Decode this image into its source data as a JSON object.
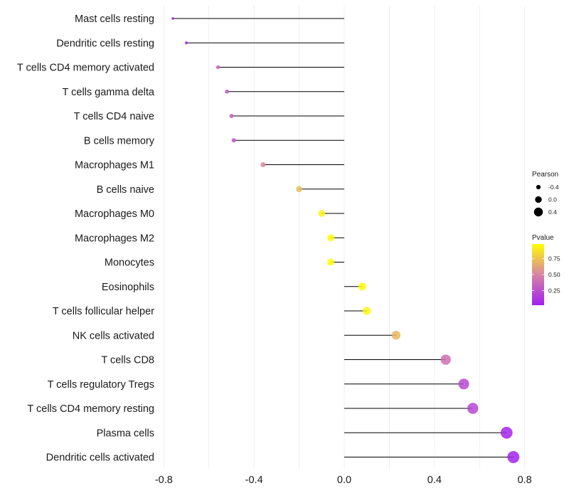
{
  "chart_data": {
    "type": "lollipop",
    "title": "",
    "xlabel": "",
    "ylabel": "",
    "xlim": [
      -0.82,
      0.82
    ],
    "xticks": [
      -0.8,
      -0.4,
      0.0,
      0.4,
      0.8
    ],
    "xtick_labels": [
      "-0.8",
      "-0.4",
      "0.0",
      "0.4",
      "0.8"
    ],
    "grid": "vertical",
    "baseline": 0.0,
    "categories": [
      "Mast cells resting",
      "Dendritic cells resting",
      "T cells CD4 memory activated",
      "T cells gamma delta",
      "T cells CD4 naive",
      "B cells memory",
      "Macrophages M1",
      "B cells naive",
      "Macrophages M0",
      "Macrophages M2",
      "Monocytes",
      "Eosinophils",
      "T cells follicular helper",
      "NK cells activated",
      "T cells CD8",
      "T cells regulatory  Tregs ",
      "T cells CD4 memory resting",
      "Plasma cells",
      "Dendritic cells activated"
    ],
    "pearson": [
      -0.76,
      -0.7,
      -0.56,
      -0.52,
      -0.5,
      -0.49,
      -0.36,
      -0.2,
      -0.1,
      -0.06,
      -0.06,
      0.08,
      0.1,
      0.23,
      0.45,
      0.53,
      0.57,
      0.72,
      0.75
    ],
    "pvalue": [
      0.03,
      0.06,
      0.35,
      0.3,
      0.33,
      0.28,
      0.52,
      0.72,
      0.93,
      0.97,
      0.97,
      0.96,
      0.95,
      0.7,
      0.4,
      0.22,
      0.2,
      0.05,
      0.04
    ],
    "legend": {
      "size_title": "Pearson",
      "size_entries": [
        {
          "label": "-0.4",
          "value": -0.4
        },
        {
          "label": "0.0",
          "value": 0.0
        },
        {
          "label": "0.4",
          "value": 0.4
        }
      ],
      "color_title": "Pvalue",
      "color_ticks": [
        {
          "label": "0.75",
          "value": 0.75
        },
        {
          "label": "0.50",
          "value": 0.5
        },
        {
          "label": "0.25",
          "value": 0.25
        }
      ],
      "color_range": [
        0.02,
        0.98
      ],
      "color_low": "#a020f0",
      "color_mid": "#d884a4",
      "color_high": "#ffff00",
      "placement": "right"
    },
    "colors": {
      "stem": "#000000",
      "grid": "#ebebeb",
      "text": "#1a1a1a",
      "background": "#ffffff"
    }
  }
}
